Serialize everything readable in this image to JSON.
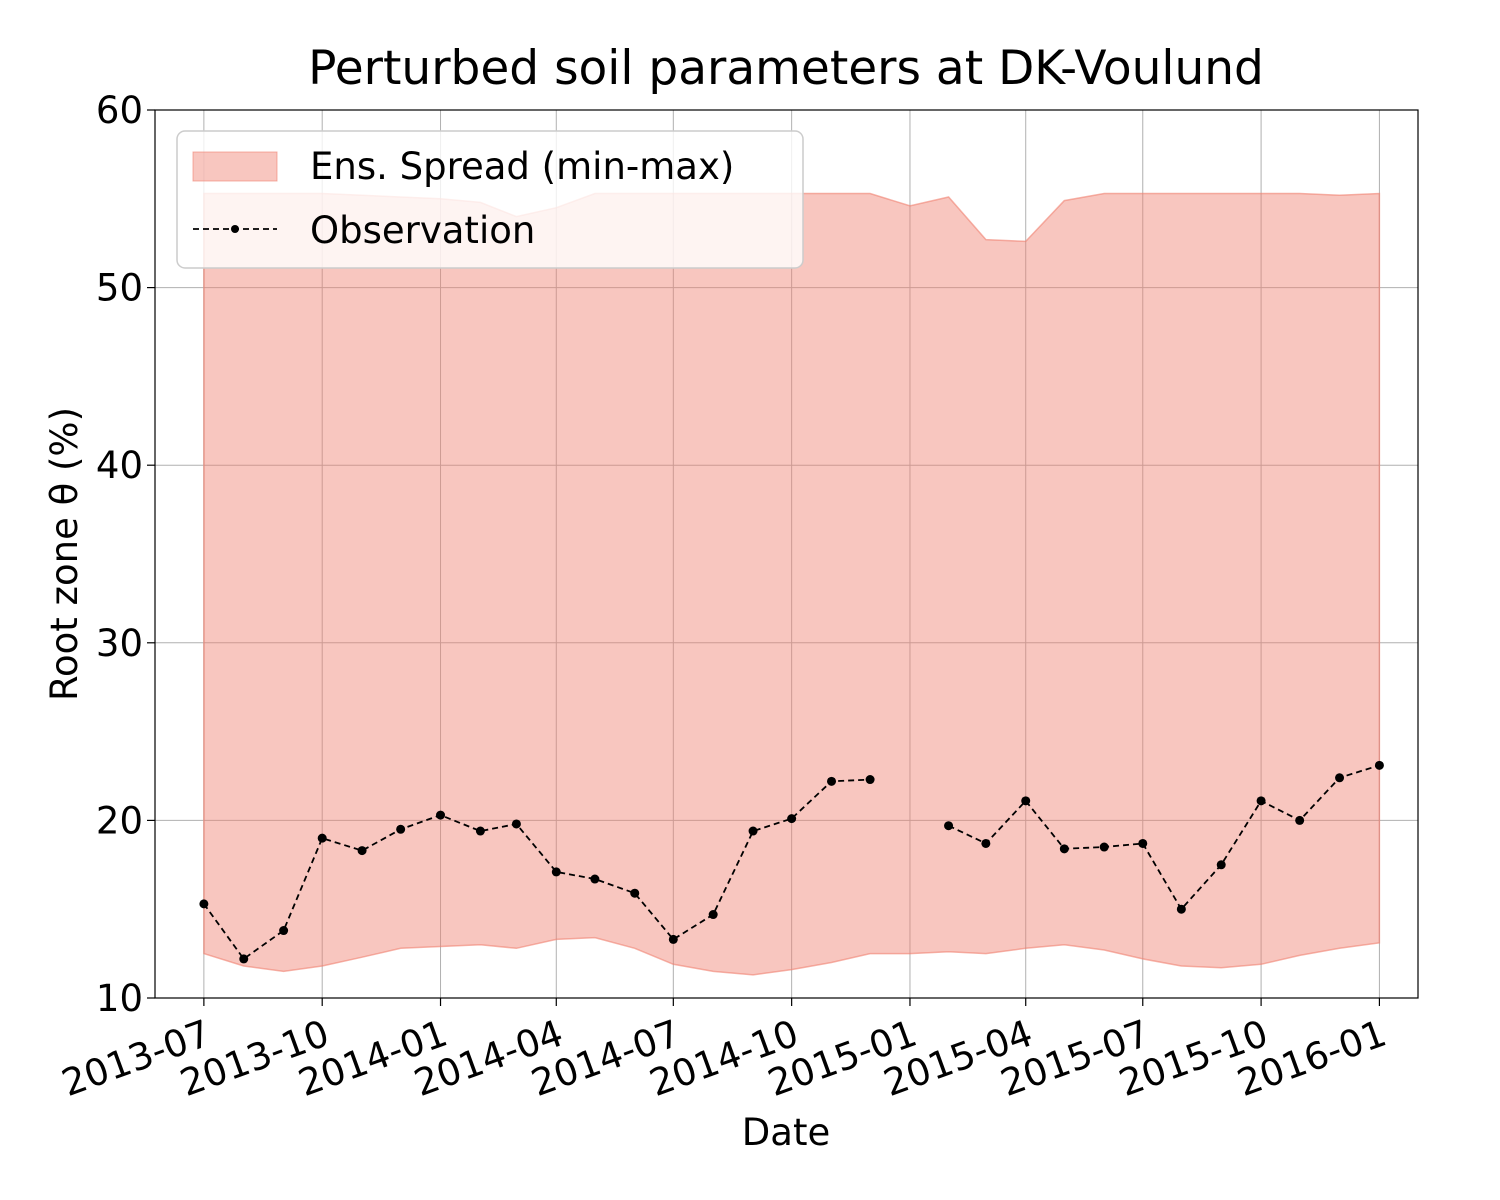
{
  "chart_data": {
    "type": "area",
    "title": "Perturbed soil parameters at DK-Voulund",
    "xlabel": "Date",
    "ylabel": "Root zone θ  (%)",
    "ylim": [
      10,
      60
    ],
    "xlim": [
      "2013-05-24",
      "2016-01-31"
    ],
    "yticks": [
      10,
      20,
      30,
      40,
      50,
      60
    ],
    "xticks": [
      "2013-07",
      "2013-10",
      "2014-01",
      "2014-04",
      "2014-07",
      "2014-10",
      "2015-01",
      "2015-04",
      "2015-07",
      "2015-10",
      "2016-01"
    ],
    "grid": true,
    "legend": {
      "placement": "upper-left"
    },
    "colors": {
      "band": "#f08070",
      "observation": "#000000"
    },
    "series": [
      {
        "name": "Ens. Spread (min-max)",
        "kind": "band",
        "x": [
          "2013-07-01",
          "2013-08-01",
          "2013-09-01",
          "2013-10-01",
          "2013-11-01",
          "2013-12-01",
          "2014-01-01",
          "2014-02-01",
          "2014-03-01",
          "2014-04-01",
          "2014-05-01",
          "2014-06-01",
          "2014-07-01",
          "2014-08-01",
          "2014-09-01",
          "2014-10-01",
          "2014-11-01",
          "2014-12-01",
          "2015-01-01",
          "2015-01-31",
          "2015-03-01",
          "2015-04-01",
          "2015-05-01",
          "2015-06-01",
          "2015-07-01",
          "2015-07-31",
          "2015-08-31",
          "2015-10-01",
          "2015-10-31",
          "2015-12-01",
          "2016-01-01"
        ],
        "lower": [
          12.5,
          11.8,
          11.5,
          11.8,
          12.3,
          12.8,
          12.9,
          13.0,
          12.8,
          13.3,
          13.4,
          12.8,
          11.9,
          11.5,
          11.3,
          11.6,
          12.0,
          12.5,
          12.5,
          12.6,
          12.5,
          12.8,
          13.0,
          12.7,
          12.2,
          11.8,
          11.7,
          11.9,
          12.4,
          12.8,
          13.1
        ],
        "upper": [
          55.3,
          55.3,
          55.3,
          55.3,
          55.2,
          55.1,
          55.0,
          54.8,
          54.0,
          54.5,
          55.3,
          55.3,
          55.3,
          55.3,
          55.3,
          55.3,
          55.3,
          55.3,
          54.6,
          55.1,
          52.7,
          52.6,
          54.9,
          55.3,
          55.3,
          55.3,
          55.3,
          55.3,
          55.3,
          55.2,
          55.3
        ]
      },
      {
        "name": "Observation",
        "kind": "line",
        "style": "dashed-with-markers",
        "x": [
          "2013-07-01",
          "2013-08-01",
          "2013-09-01",
          "2013-10-01",
          "2013-11-01",
          "2013-12-01",
          "2014-01-01",
          "2014-02-01",
          "2014-03-01",
          "2014-04-01",
          "2014-05-01",
          "2014-06-01",
          "2014-07-01",
          "2014-08-01",
          "2014-09-01",
          "2014-10-01",
          "2014-11-01",
          "2014-12-01",
          "2015-01-01",
          "2015-01-31",
          "2015-03-01",
          "2015-04-01",
          "2015-05-01",
          "2015-06-01",
          "2015-07-01",
          "2015-07-31",
          "2015-08-31",
          "2015-10-01",
          "2015-10-31",
          "2015-12-01",
          "2016-01-01"
        ],
        "values": [
          15.3,
          12.2,
          13.8,
          19.0,
          18.3,
          19.5,
          20.3,
          19.4,
          19.8,
          17.1,
          16.7,
          15.9,
          13.3,
          14.7,
          19.4,
          20.1,
          22.2,
          22.3,
          null,
          19.7,
          18.7,
          21.1,
          18.4,
          18.5,
          18.7,
          15.0,
          17.5,
          21.1,
          20.0,
          22.4,
          23.1
        ]
      }
    ]
  }
}
